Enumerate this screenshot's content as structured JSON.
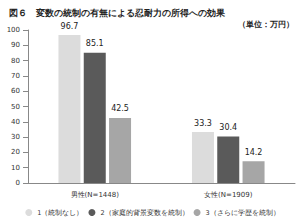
{
  "chart_data": {
    "type": "bar",
    "title": "図６　変数の統制の有無による忍耐力の所得への効果",
    "subtitle": "（単位：万円）",
    "categories": [
      "男性(N=1448)",
      "女性(N=1909)"
    ],
    "series": [
      {
        "name": "1（統制なし）",
        "color": "#dcdcdc",
        "values": [
          96.7,
          33.3
        ]
      },
      {
        "name": "2（家庭的背景変数を統制）",
        "color": "#5a5a5a",
        "values": [
          85.1,
          30.4
        ]
      },
      {
        "name": "3（さらに学歴を統制）",
        "color": "#a6a6a6",
        "values": [
          42.5,
          14.2
        ]
      }
    ],
    "ylim": [
      0,
      100
    ],
    "yticks": [
      0,
      10,
      20,
      30,
      40,
      50,
      60,
      70,
      80,
      90,
      100
    ],
    "grid": false,
    "legend": "bottom",
    "data_labels": true
  }
}
